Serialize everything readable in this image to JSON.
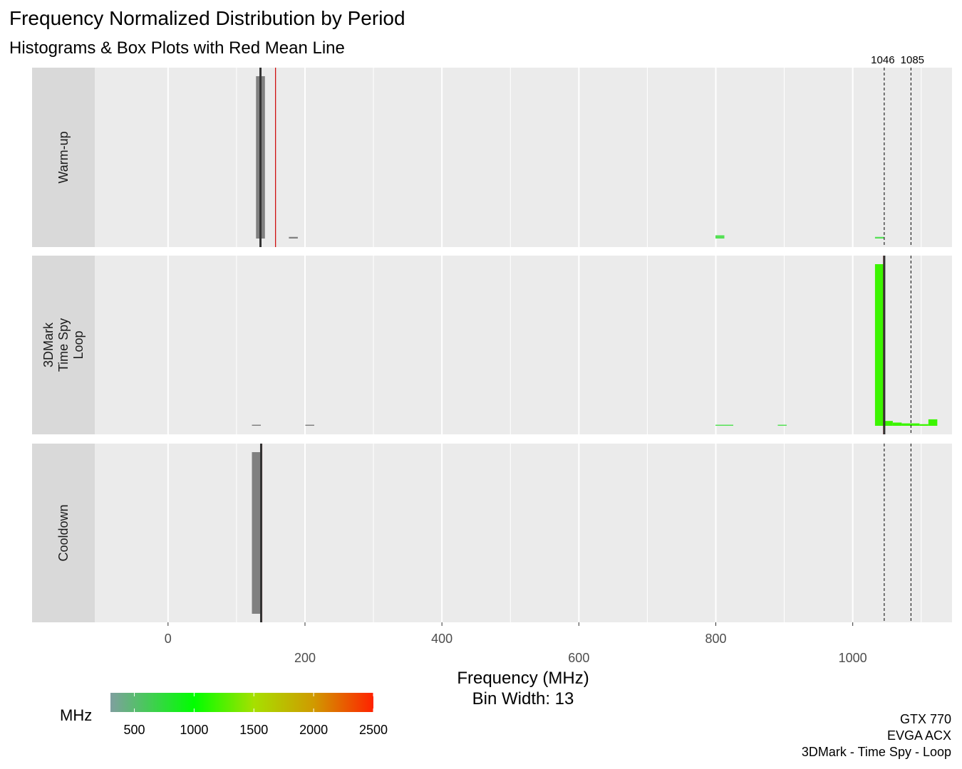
{
  "chart_data": {
    "type": "histogram",
    "title": "Frequency Normalized Distribution by Period",
    "subtitle": "Histograms & Box Plots with Red Mean Line",
    "xlabel": "Frequency (MHz)",
    "xlabel2": "Bin Width: 13",
    "xlim": [
      -107,
      1145
    ],
    "x_ticks_upper": [
      0,
      400,
      800
    ],
    "x_ticks_lower": [
      200,
      600,
      1000
    ],
    "grid": true,
    "facets": [
      {
        "label": "Warm-up",
        "bins": [
          {
            "x": 135,
            "density": 1.0,
            "color": "#808080"
          },
          {
            "x": 183,
            "density": 0.01,
            "color": "#808080"
          },
          {
            "x": 806,
            "density": 0.02,
            "color": "#55e055"
          },
          {
            "x": 1039,
            "density": 0.01,
            "color": "#55e055"
          }
        ],
        "median": 135,
        "mean": 157,
        "box": [
          135,
          135
        ]
      },
      {
        "label": "3DMark\nTime Spy\nLoop",
        "bins": [
          {
            "x": 129,
            "density": 0.004,
            "color": "#808080"
          },
          {
            "x": 207,
            "density": 0.004,
            "color": "#808080"
          },
          {
            "x": 806,
            "density": 0.004,
            "color": "#55e055"
          },
          {
            "x": 819,
            "density": 0.004,
            "color": "#55e055"
          },
          {
            "x": 897,
            "density": 0.004,
            "color": "#55e055"
          },
          {
            "x": 1039,
            "density": 1.0,
            "color": "#3cf500"
          },
          {
            "x": 1052,
            "density": 0.03,
            "color": "#3cf500"
          },
          {
            "x": 1065,
            "density": 0.02,
            "color": "#3cf500"
          },
          {
            "x": 1078,
            "density": 0.015,
            "color": "#3cf500"
          },
          {
            "x": 1091,
            "density": 0.015,
            "color": "#3cf500"
          },
          {
            "x": 1104,
            "density": 0.01,
            "color": "#3cf500"
          },
          {
            "x": 1117,
            "density": 0.04,
            "color": "#3cf500"
          }
        ],
        "median": 1046,
        "mean": 1045,
        "box": [
          1046,
          1046
        ]
      },
      {
        "label": "Cooldown",
        "bins": [
          {
            "x": 129,
            "density": 1.0,
            "color": "#808080"
          }
        ],
        "median": 136,
        "mean": 137,
        "box": [
          136,
          136
        ]
      }
    ],
    "reference_lines": [
      {
        "x": 1046,
        "label": "1046"
      },
      {
        "x": 1085,
        "label": "1085"
      }
    ],
    "legend": {
      "title": "MHz",
      "placement": "bottom-left",
      "range": [
        300,
        2500
      ],
      "ticks": [
        500,
        1000,
        1500,
        2000,
        2500
      ],
      "colors": [
        {
          "value": 300,
          "color": "#7f9f9f"
        },
        {
          "value": 1000,
          "color": "#00ff00"
        },
        {
          "value": 1500,
          "color": "#a6e000"
        },
        {
          "value": 2000,
          "color": "#d09a00"
        },
        {
          "value": 2500,
          "color": "#ff2200"
        }
      ]
    },
    "caption": [
      "GTX 770",
      "EVGA ACX",
      "3DMark - Time Spy - Loop"
    ]
  }
}
